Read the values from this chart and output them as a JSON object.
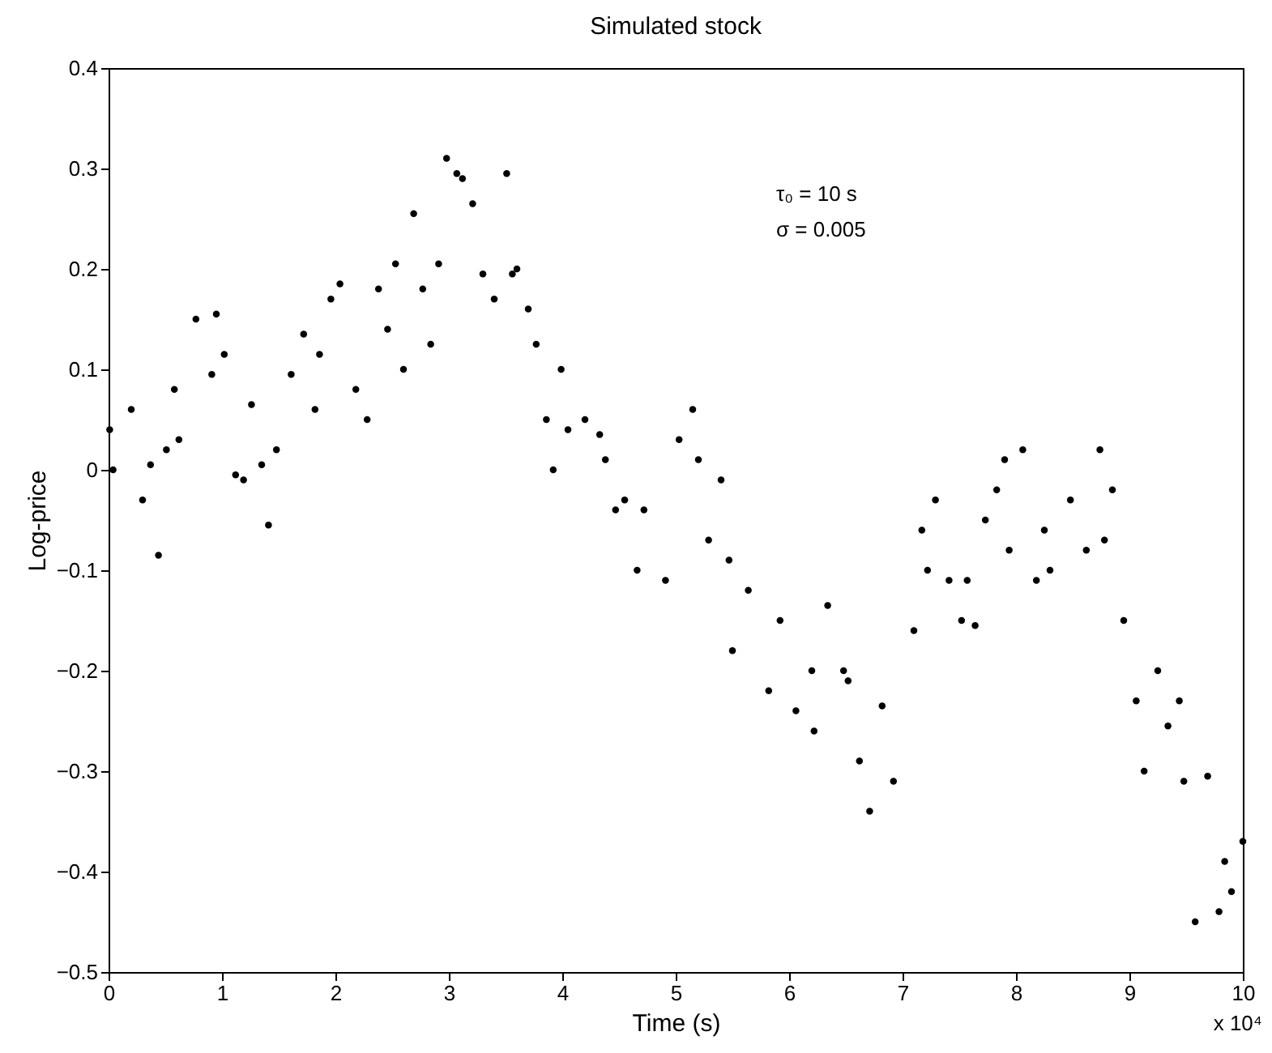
{
  "chart_data": {
    "type": "scatter",
    "title": "Simulated stock",
    "xlabel": "Time (s)",
    "ylabel": "Log-price",
    "annotations": [
      "τ₀ = 10 s",
      "σ = 0.005",
      "x 10⁴"
    ],
    "xlim": [
      0,
      10
    ],
    "xticks": [
      0,
      1,
      2,
      3,
      4,
      5,
      6,
      7,
      8,
      9,
      10
    ],
    "ylim": [
      -0.5,
      0.4
    ],
    "yticks": [
      -0.5,
      -0.4,
      -0.3,
      -0.2,
      -0.1,
      0,
      0.1,
      0.2,
      0.3,
      0.4
    ],
    "grid": false,
    "marker": "circle",
    "series": [
      {
        "color": "#000000",
        "x": [
          0.01,
          0.04,
          0.2,
          0.3,
          0.37,
          0.44,
          0.51,
          0.58,
          0.62,
          0.77,
          0.91,
          0.95,
          1.02,
          1.12,
          1.19,
          1.26,
          1.35,
          1.41,
          1.48,
          1.61,
          1.72,
          1.82,
          1.86,
          1.96,
          2.04,
          2.18,
          2.28,
          2.38,
          2.46,
          2.53,
          2.6,
          2.69,
          2.77,
          2.84,
          2.91,
          2.98,
          3.07,
          3.12,
          3.21,
          3.3,
          3.4,
          3.51,
          3.56,
          3.6,
          3.7,
          3.77,
          3.86,
          3.92,
          3.99,
          4.05,
          4.2,
          4.33,
          4.38,
          4.47,
          4.55,
          4.66,
          4.72,
          4.91,
          5.03,
          5.15,
          5.2,
          5.29,
          5.4,
          5.47,
          5.5,
          5.64,
          5.82,
          5.92,
          6.06,
          6.2,
          6.22,
          6.34,
          6.48,
          6.52,
          6.62,
          6.71,
          6.82,
          6.92,
          7.1,
          7.17,
          7.22,
          7.29,
          7.41,
          7.52,
          7.57,
          7.64,
          7.73,
          7.83,
          7.9,
          7.94,
          8.06,
          8.18,
          8.25,
          8.3,
          8.48,
          8.62,
          8.74,
          8.78,
          8.85,
          8.95,
          9.06,
          9.13,
          9.25,
          9.34,
          9.44,
          9.48,
          9.58,
          9.69,
          9.79,
          9.84,
          9.9,
          10
        ],
        "values": [
          0.04,
          0.0,
          0.06,
          -0.03,
          0.005,
          -0.085,
          0.02,
          0.08,
          0.03,
          0.15,
          0.095,
          0.155,
          0.115,
          -0.005,
          -0.01,
          0.065,
          0.005,
          -0.055,
          0.02,
          0.095,
          0.135,
          0.06,
          0.115,
          0.17,
          0.185,
          0.08,
          0.05,
          0.18,
          0.14,
          0.205,
          0.1,
          0.255,
          0.18,
          0.125,
          0.205,
          0.31,
          0.295,
          0.29,
          0.265,
          0.195,
          0.17,
          0.295,
          0.195,
          0.2,
          0.16,
          0.125,
          0.05,
          0.0,
          0.1,
          0.04,
          0.05,
          0.035,
          0.01,
          -0.04,
          -0.03,
          -0.1,
          -0.04,
          -0.11,
          0.03,
          0.06,
          0.01,
          -0.07,
          -0.01,
          -0.09,
          -0.18,
          -0.12,
          -0.22,
          -0.15,
          -0.24,
          -0.2,
          -0.26,
          -0.135,
          -0.2,
          -0.21,
          -0.29,
          -0.34,
          -0.235,
          -0.31,
          -0.16,
          -0.06,
          -0.1,
          -0.03,
          -0.11,
          -0.15,
          -0.11,
          -0.155,
          -0.05,
          -0.02,
          0.01,
          -0.08,
          0.02,
          -0.11,
          -0.06,
          -0.1,
          -0.03,
          -0.08,
          0.02,
          -0.07,
          -0.02,
          -0.15,
          -0.23,
          -0.3,
          -0.2,
          -0.255,
          -0.23,
          -0.31,
          -0.45,
          -0.305,
          -0.44,
          -0.39,
          -0.42,
          -0.37
        ]
      }
    ]
  }
}
